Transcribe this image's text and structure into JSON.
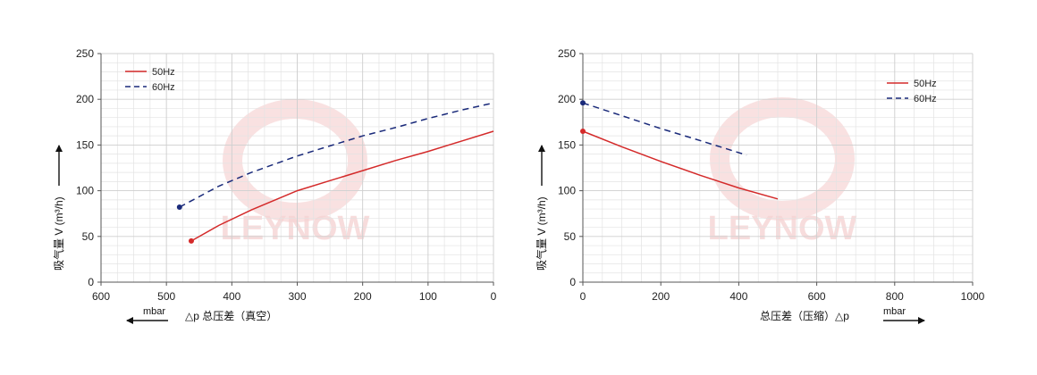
{
  "chart_data": [
    {
      "type": "line",
      "x_axis": {
        "range": [
          600,
          0
        ],
        "reversed": true,
        "ticks": [
          600,
          500,
          400,
          300,
          200,
          100,
          0
        ],
        "unit": "mbar",
        "label": "△p 总压差（真空）",
        "arrow_direction": "left"
      },
      "y_axis": {
        "range": [
          0,
          250
        ],
        "ticks": [
          0,
          50,
          100,
          150,
          200,
          250
        ],
        "label": "吸气量 V (m³/h)"
      },
      "grid": true,
      "legend": {
        "placement": "top-left",
        "entries": [
          "50Hz",
          "60Hz"
        ]
      },
      "series": [
        {
          "name": "50Hz",
          "color": "#d42a2a",
          "style": "solid",
          "x": [
            462,
            420,
            370,
            300,
            250,
            200,
            150,
            100,
            50,
            0
          ],
          "y": [
            45,
            62,
            79,
            100,
            111,
            122,
            133,
            143,
            154,
            165
          ]
        },
        {
          "name": "60Hz",
          "color": "#1a2a7a",
          "style": "dashed",
          "x": [
            480,
            420,
            370,
            300,
            250,
            200,
            150,
            100,
            50,
            0
          ],
          "y": [
            82,
            105,
            120,
            138,
            149,
            160,
            169,
            179,
            188,
            196
          ]
        }
      ]
    },
    {
      "type": "line",
      "x_axis": {
        "range": [
          0,
          1000
        ],
        "reversed": false,
        "ticks": [
          0,
          200,
          400,
          600,
          800,
          1000
        ],
        "unit": "mbar",
        "label": "总压差（压缩）△p",
        "arrow_direction": "right"
      },
      "y_axis": {
        "range": [
          0,
          250
        ],
        "ticks": [
          0,
          50,
          100,
          150,
          200,
          250
        ],
        "label": "吸气量 V (m³/h)"
      },
      "grid": true,
      "legend": {
        "placement": "top-right",
        "entries": [
          "50Hz",
          "60Hz"
        ]
      },
      "series": [
        {
          "name": "50Hz",
          "color": "#d42a2a",
          "style": "solid",
          "x": [
            0,
            100,
            200,
            300,
            400,
            500
          ],
          "y": [
            165,
            148,
            132,
            117,
            103,
            91
          ]
        },
        {
          "name": "60Hz",
          "color": "#1a2a7a",
          "style": "dashed",
          "x": [
            0,
            100,
            200,
            300,
            420
          ],
          "y": [
            196,
            182,
            168,
            155,
            139
          ]
        }
      ]
    }
  ],
  "watermark": {
    "text": "LEYNOW",
    "color": "#f3c9c9"
  }
}
